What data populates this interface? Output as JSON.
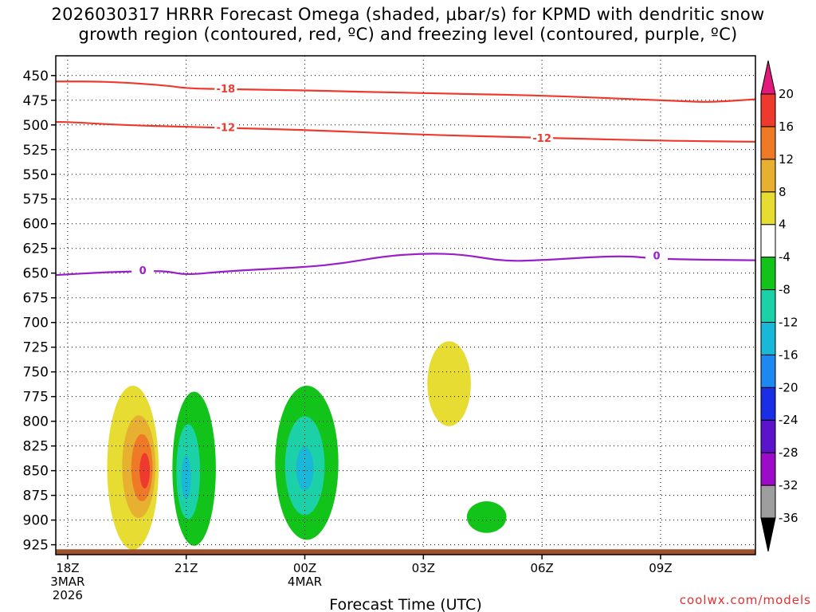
{
  "title": {
    "line1": "2026030317 HRRR Forecast Omega (shaded, μbar/s) for KPMD with dendritic snow",
    "line2": "growth region (contoured, red, ºC) and freezing level (contoured, purple, ºC)"
  },
  "credit": "coolwx.com/models",
  "chart_data": {
    "type": "heatmap",
    "xlabel": "Forecast Time (UTC)",
    "ylabel": "",
    "x_range_hours": [
      -0.3,
      17.4
    ],
    "y_range_hpa": [
      430,
      935
    ],
    "y_ticks": [
      450,
      475,
      500,
      525,
      550,
      575,
      600,
      625,
      650,
      675,
      700,
      725,
      750,
      775,
      800,
      825,
      850,
      875,
      900,
      925
    ],
    "x_ticks": [
      {
        "hour": 0,
        "lines": [
          "18Z",
          "3MAR",
          "2026"
        ]
      },
      {
        "hour": 3,
        "lines": [
          "21Z"
        ]
      },
      {
        "hour": 6,
        "lines": [
          "00Z",
          "4MAR"
        ]
      },
      {
        "hour": 9,
        "lines": [
          "03Z"
        ]
      },
      {
        "hour": 12,
        "lines": [
          "06Z"
        ]
      },
      {
        "hour": 15,
        "lines": [
          "09Z"
        ]
      }
    ],
    "grid": true,
    "colorbar": {
      "levels": [
        -36,
        -32,
        -28,
        -24,
        -20,
        -16,
        -12,
        -8,
        -4,
        4,
        8,
        12,
        16,
        20
      ],
      "colors": [
        "#9e9e9e",
        "#9c0cc8",
        "#5a14cc",
        "#1a2ee6",
        "#1e88f0",
        "#1ab8d8",
        "#1cd0a8",
        "#12c41a",
        "#ffffff",
        "#e6dc32",
        "#e8b030",
        "#ee7a28",
        "#ee3a2e"
      ],
      "over_color": "#e0197a",
      "under_color": "#000000"
    },
    "contours": [
      {
        "name": "dgz-minus-18",
        "label": "-18",
        "color": "#ee3a2e",
        "points": [
          [
            -0.3,
            456
          ],
          [
            1,
            456
          ],
          [
            2.5,
            460
          ],
          [
            3,
            463
          ],
          [
            4.2,
            464
          ],
          [
            6,
            465
          ],
          [
            9,
            468
          ],
          [
            12,
            470
          ],
          [
            15.5,
            476
          ],
          [
            16.3,
            477
          ],
          [
            17.4,
            474
          ]
        ],
        "label_at": [
          4.0,
          463
        ]
      },
      {
        "name": "dgz-minus-12",
        "label": "-12",
        "color": "#ee3a2e",
        "points": [
          [
            -0.3,
            497
          ],
          [
            0,
            497
          ],
          [
            1.3,
            500
          ],
          [
            3,
            502
          ],
          [
            6,
            505
          ],
          [
            9,
            510
          ],
          [
            12,
            513
          ],
          [
            15,
            516
          ],
          [
            17.4,
            517
          ]
        ],
        "label_at": [
          4.0,
          502
        ],
        "label2_at": [
          12.0,
          513
        ]
      },
      {
        "name": "freezing-level-0",
        "label": "0",
        "color": "#9a1ec8",
        "points": [
          [
            -0.3,
            652
          ],
          [
            1,
            649
          ],
          [
            2,
            648
          ],
          [
            2.5,
            648
          ],
          [
            3,
            652
          ],
          [
            4,
            648
          ],
          [
            6,
            644
          ],
          [
            7,
            640
          ],
          [
            8,
            633
          ],
          [
            9,
            630
          ],
          [
            10,
            631
          ],
          [
            11,
            638
          ],
          [
            12,
            637
          ],
          [
            14,
            632
          ],
          [
            15,
            636
          ],
          [
            17.4,
            637
          ]
        ],
        "label_at": [
          1.9,
          647
        ],
        "label2_at": [
          14.9,
          632
        ]
      }
    ],
    "shaded_regions": [
      {
        "name": "upward-omega-1",
        "value_range": [
          4,
          8
        ],
        "color": "#e6dc32",
        "center": [
          1.65,
          847
        ],
        "rx": 0.65,
        "ry": 83
      },
      {
        "name": "upward-omega-1b",
        "value_range": [
          8,
          12
        ],
        "color": "#e8b030",
        "center": [
          1.8,
          846
        ],
        "rx": 0.42,
        "ry": 52
      },
      {
        "name": "upward-omega-1c",
        "value_range": [
          12,
          16
        ],
        "color": "#ee7a28",
        "center": [
          1.88,
          847
        ],
        "rx": 0.27,
        "ry": 34
      },
      {
        "name": "upward-omega-1d",
        "value_range": [
          16,
          20
        ],
        "color": "#ee3a2e",
        "center": [
          1.95,
          850
        ],
        "rx": 0.13,
        "ry": 18
      },
      {
        "name": "downward-omega-2",
        "value_range": [
          -8,
          -4
        ],
        "color": "#12c41a",
        "center": [
          3.2,
          848
        ],
        "rx": 0.55,
        "ry": 78
      },
      {
        "name": "downward-omega-2b",
        "value_range": [
          -12,
          -8
        ],
        "color": "#1cd0a8",
        "center": [
          3.05,
          851
        ],
        "rx": 0.3,
        "ry": 48
      },
      {
        "name": "downward-omega-2c",
        "value_range": [
          -16,
          -12
        ],
        "color": "#1ab8d8",
        "center": [
          3.0,
          857
        ],
        "rx": 0.12,
        "ry": 22
      },
      {
        "name": "downward-omega-3",
        "value_range": [
          -8,
          -4
        ],
        "color": "#12c41a",
        "center": [
          6.05,
          842
        ],
        "rx": 0.8,
        "ry": 78
      },
      {
        "name": "downward-omega-3b",
        "value_range": [
          -12,
          -8
        ],
        "color": "#1cd0a8",
        "center": [
          6.0,
          845
        ],
        "rx": 0.5,
        "ry": 50
      },
      {
        "name": "downward-omega-3c",
        "value_range": [
          -16,
          -12
        ],
        "color": "#1ab8d8",
        "center": [
          6.0,
          848
        ],
        "rx": 0.22,
        "ry": 22
      },
      {
        "name": "upward-omega-4",
        "value_range": [
          4,
          8
        ],
        "color": "#e6dc32",
        "center": [
          9.65,
          762
        ],
        "rx": 0.55,
        "ry": 43
      },
      {
        "name": "downward-omega-5",
        "value_range": [
          -8,
          -4
        ],
        "color": "#12c41a",
        "center": [
          10.6,
          897
        ],
        "rx": 0.5,
        "ry": 16
      }
    ],
    "ground": {
      "color": "#a0522d",
      "pressure_hpa": 932
    }
  }
}
